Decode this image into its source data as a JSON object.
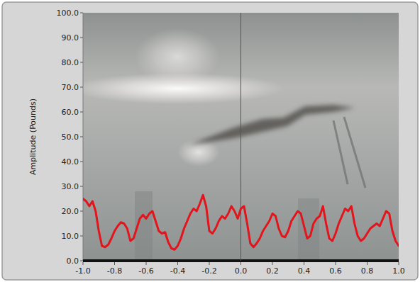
{
  "chart_data": {
    "type": "line",
    "y_label": "Amplitude (Pounds)",
    "color": "#e3141b",
    "line_style": "solid",
    "grid": false,
    "cursor_x": 0,
    "xlim": [
      -1,
      1
    ],
    "ylim": [
      0,
      100
    ],
    "xticks": [
      {
        "value": -1,
        "label": "-1.0"
      },
      {
        "value": -0.8,
        "label": "-0.8"
      },
      {
        "value": -0.6,
        "label": "-0.6"
      },
      {
        "value": -0.4,
        "label": "-0.4"
      },
      {
        "value": -0.2,
        "label": "-0.2"
      },
      {
        "value": 0,
        "label": "0.0"
      },
      {
        "value": 0.2,
        "label": "0.2"
      },
      {
        "value": 0.4,
        "label": "0.4"
      },
      {
        "value": 0.6,
        "label": "0.6"
      },
      {
        "value": 0.8,
        "label": "0.8"
      },
      {
        "value": 1,
        "label": "1.0"
      }
    ],
    "yticks": [
      {
        "value": 0,
        "label": "0.0"
      },
      {
        "value": 10,
        "label": "10.0"
      },
      {
        "value": 20,
        "label": "20.0"
      },
      {
        "value": 30,
        "label": "30.0"
      },
      {
        "value": 40,
        "label": "40.0"
      },
      {
        "value": 50,
        "label": "50.0"
      },
      {
        "value": 60,
        "label": "60.0"
      },
      {
        "value": 70,
        "label": "70.0"
      },
      {
        "value": 80,
        "label": "80.0"
      },
      {
        "value": 90,
        "label": "90.0"
      },
      {
        "value": 100,
        "label": "100.0"
      }
    ],
    "x": [
      -1,
      -0.98,
      -0.96,
      -0.94,
      -0.92,
      -0.9,
      -0.88,
      -0.86,
      -0.84,
      -0.82,
      -0.8,
      -0.78,
      -0.76,
      -0.74,
      -0.72,
      -0.7,
      -0.68,
      -0.66,
      -0.64,
      -0.62,
      -0.6,
      -0.58,
      -0.56,
      -0.54,
      -0.52,
      -0.5,
      -0.48,
      -0.46,
      -0.44,
      -0.42,
      -0.4,
      -0.38,
      -0.36,
      -0.34,
      -0.32,
      -0.3,
      -0.28,
      -0.26,
      -0.24,
      -0.22,
      -0.2,
      -0.18,
      -0.16,
      -0.14,
      -0.12,
      -0.1,
      -0.08,
      -0.06,
      -0.04,
      -0.02,
      0,
      0.02,
      0.04,
      0.06,
      0.08,
      0.1,
      0.12,
      0.14,
      0.16,
      0.18,
      0.2,
      0.22,
      0.24,
      0.26,
      0.28,
      0.3,
      0.32,
      0.34,
      0.36,
      0.38,
      0.4,
      0.42,
      0.44,
      0.46,
      0.48,
      0.5,
      0.52,
      0.54,
      0.56,
      0.58,
      0.6,
      0.62,
      0.64,
      0.66,
      0.68,
      0.7,
      0.72,
      0.74,
      0.76,
      0.78,
      0.8,
      0.82,
      0.84,
      0.86,
      0.88,
      0.9,
      0.92,
      0.94,
      0.96,
      0.98,
      1
    ],
    "values": [
      25,
      24,
      22,
      24,
      20,
      12,
      6,
      5.5,
      6.5,
      9,
      12,
      14,
      15.5,
      15,
      13,
      8,
      9,
      13,
      17,
      18.5,
      17,
      19,
      20,
      16,
      12,
      11,
      11.5,
      7.5,
      5,
      4.5,
      6,
      9,
      13,
      16,
      19,
      21,
      20,
      23,
      26.5,
      22,
      12,
      11,
      13,
      16,
      18,
      17,
      19,
      22,
      20,
      17,
      21,
      22,
      15,
      7,
      5.5,
      7,
      9,
      12,
      14,
      16,
      19,
      18,
      13,
      10,
      9.5,
      12,
      16,
      18,
      20,
      19,
      14,
      9,
      10,
      15,
      17,
      18,
      22,
      15,
      9,
      8,
      11,
      15,
      18,
      21,
      20,
      22,
      15,
      10,
      8,
      9,
      11,
      13,
      14,
      15,
      14,
      17,
      20,
      19,
      12,
      8,
      6
    ]
  }
}
